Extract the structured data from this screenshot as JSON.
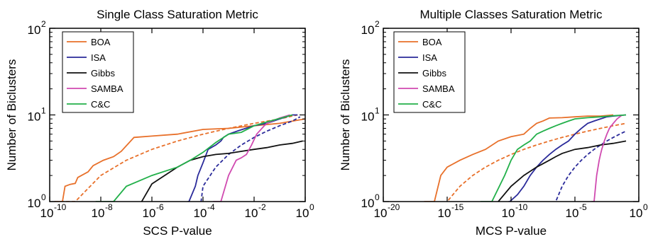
{
  "chart_data": [
    {
      "type": "line",
      "title": "Single Class Saturation Metric",
      "xlabel": "SCS P-value",
      "ylabel": "Number of Biclusters",
      "xscale": "log",
      "yscale": "log",
      "xlim": [
        -10,
        0
      ],
      "ylim": [
        0,
        2
      ],
      "xticks": [
        {
          "exp": -10,
          "label": "10",
          "sup": "-10"
        },
        {
          "exp": -8,
          "label": "10",
          "sup": "-8"
        },
        {
          "exp": -6,
          "label": "10",
          "sup": "-6"
        },
        {
          "exp": -4,
          "label": "10",
          "sup": "-4"
        },
        {
          "exp": -2,
          "label": "10",
          "sup": "-2"
        },
        {
          "exp": 0,
          "label": "10",
          "sup": "0"
        }
      ],
      "yticks": [
        {
          "exp": 0,
          "label": "10",
          "sup": "0"
        },
        {
          "exp": 1,
          "label": "10",
          "sup": "1"
        },
        {
          "exp": 2,
          "label": "10",
          "sup": "2"
        }
      ],
      "legend": {
        "position": "top-left",
        "entries": [
          {
            "name": "BOA",
            "color": "#e8702a"
          },
          {
            "name": "ISA",
            "color": "#2a2a9a"
          },
          {
            "name": "Gibbs",
            "color": "#111111"
          },
          {
            "name": "SAMBA",
            "color": "#d04ab0"
          },
          {
            "name": "C&C",
            "color": "#22b04a"
          }
        ]
      },
      "series": [
        {
          "name": "BOA",
          "color": "#e8702a",
          "dash": false,
          "points": [
            [
              -9.8,
              1
            ],
            [
              -9.5,
              1
            ],
            [
              -9.4,
              1.5
            ],
            [
              -9.2,
              1.58
            ],
            [
              -9,
              1.62
            ],
            [
              -8.9,
              1.9
            ],
            [
              -8.5,
              2.2
            ],
            [
              -8.3,
              2.6
            ],
            [
              -7.9,
              3
            ],
            [
              -7.5,
              3.3
            ],
            [
              -7.2,
              3.8
            ],
            [
              -6.7,
              5.5
            ],
            [
              -6,
              5.7
            ],
            [
              -5,
              6
            ],
            [
              -4,
              6.8
            ],
            [
              -3,
              7
            ],
            [
              -2,
              7.5
            ],
            [
              -1,
              8
            ],
            [
              0,
              9
            ]
          ]
        },
        {
          "name": "BOA",
          "color": "#e8702a",
          "dash": true,
          "points": [
            [
              -9.8,
              0
            ],
            [
              -9,
              1
            ],
            [
              -8,
              2
            ],
            [
              -7,
              3
            ],
            [
              -6,
              4
            ],
            [
              -5,
              5
            ],
            [
              -4,
              6
            ],
            [
              -3,
              7
            ],
            [
              -2,
              8
            ],
            [
              -1,
              9
            ],
            [
              -0.3,
              10
            ]
          ]
        },
        {
          "name": "ISA",
          "color": "#2a2a9a",
          "dash": false,
          "points": [
            [
              -4.6,
              0
            ],
            [
              -4.55,
              1
            ],
            [
              -4.3,
              1.5
            ],
            [
              -4.2,
              2
            ],
            [
              -4,
              2.8
            ],
            [
              -3.8,
              4
            ],
            [
              -3.5,
              4.5
            ],
            [
              -3.3,
              5
            ],
            [
              -3.2,
              5.5
            ],
            [
              -3,
              6
            ],
            [
              -2.6,
              6.6
            ],
            [
              -2,
              7.5
            ],
            [
              -1.5,
              8
            ],
            [
              -1,
              9
            ],
            [
              -0.5,
              10
            ],
            [
              -0.3,
              10
            ]
          ]
        },
        {
          "name": "ISA",
          "color": "#2a2a9a",
          "dash": true,
          "points": [
            [
              -4.3,
              0.3
            ],
            [
              -4,
              1.5
            ],
            [
              -3.5,
              2.5
            ],
            [
              -3,
              3.5
            ],
            [
              -2.5,
              4.5
            ],
            [
              -2,
              5.5
            ],
            [
              -1.5,
              6.5
            ],
            [
              -1,
              7.5
            ],
            [
              -0.5,
              8.5
            ],
            [
              -0.2,
              9.5
            ]
          ]
        },
        {
          "name": "Gibbs",
          "color": "#111111",
          "dash": false,
          "points": [
            [
              -7.4,
              0
            ],
            [
              -6.9,
              0.5
            ],
            [
              -6.4,
              1
            ],
            [
              -6,
              1.6
            ],
            [
              -5.5,
              2
            ],
            [
              -5,
              2.5
            ],
            [
              -4.5,
              3
            ],
            [
              -4,
              3.3
            ],
            [
              -3.5,
              3.5
            ],
            [
              -3,
              3.6
            ],
            [
              -2.5,
              3.8
            ],
            [
              -2,
              4
            ],
            [
              -1.5,
              4.2
            ],
            [
              -1,
              4.5
            ],
            [
              -0.5,
              4.7
            ],
            [
              -0.1,
              5
            ]
          ]
        },
        {
          "name": "SAMBA",
          "color": "#d04ab0",
          "dash": false,
          "points": [
            [
              -3.6,
              0
            ],
            [
              -3.3,
              1
            ],
            [
              -3,
              2
            ],
            [
              -2.7,
              3
            ],
            [
              -2.5,
              3.2
            ],
            [
              -2.3,
              3.5
            ],
            [
              -2.1,
              4.5
            ],
            [
              -1.9,
              6
            ],
            [
              -1.6,
              7.5
            ],
            [
              -1.5,
              8
            ],
            [
              -1.3,
              8.5
            ],
            [
              -1,
              9.2
            ],
            [
              -0.6,
              10
            ]
          ]
        },
        {
          "name": "C&C",
          "color": "#22b04a",
          "dash": false,
          "points": [
            [
              -8.2,
              0
            ],
            [
              -7.5,
              1
            ],
            [
              -7,
              1.5
            ],
            [
              -6,
              2
            ],
            [
              -5,
              2.5
            ],
            [
              -4.5,
              3
            ],
            [
              -4,
              3.7
            ],
            [
              -3.5,
              4.8
            ],
            [
              -3,
              6
            ],
            [
              -2.5,
              6.3
            ],
            [
              -2,
              7.5
            ],
            [
              -1.5,
              8.3
            ],
            [
              -1,
              9.1
            ],
            [
              -0.5,
              10
            ]
          ]
        }
      ]
    },
    {
      "type": "line",
      "title": "Multiple Classes Saturation Metric",
      "xlabel": "MCS P-value",
      "ylabel": "Number of Biclusters",
      "xscale": "log",
      "yscale": "log",
      "xlim": [
        -20,
        0
      ],
      "ylim": [
        0,
        2
      ],
      "xticks": [
        {
          "exp": -20,
          "label": "10",
          "sup": "-20"
        },
        {
          "exp": -15,
          "label": "10",
          "sup": "-15"
        },
        {
          "exp": -10,
          "label": "10",
          "sup": "-10"
        },
        {
          "exp": -5,
          "label": "10",
          "sup": "-5"
        },
        {
          "exp": 0,
          "label": "10",
          "sup": "0"
        }
      ],
      "yticks": [
        {
          "exp": 0,
          "label": "10",
          "sup": "0"
        },
        {
          "exp": 1,
          "label": "10",
          "sup": "1"
        },
        {
          "exp": 2,
          "label": "10",
          "sup": "2"
        }
      ],
      "legend": {
        "position": "top-right",
        "entries": [
          {
            "name": "BOA",
            "color": "#e8702a"
          },
          {
            "name": "ISA",
            "color": "#2a2a9a"
          },
          {
            "name": "Gibbs",
            "color": "#111111"
          },
          {
            "name": "SAMBA",
            "color": "#d04ab0"
          },
          {
            "name": "C&C",
            "color": "#22b04a"
          }
        ]
      },
      "series": [
        {
          "name": "BOA",
          "color": "#e8702a",
          "dash": false,
          "points": [
            [
              -16.8,
              0
            ],
            [
              -16,
              1
            ],
            [
              -15.5,
              2
            ],
            [
              -15,
              2.5
            ],
            [
              -14,
              3
            ],
            [
              -13,
              3.5
            ],
            [
              -12,
              4
            ],
            [
              -11,
              5
            ],
            [
              -10,
              5.6
            ],
            [
              -9,
              6
            ],
            [
              -8.5,
              7
            ],
            [
              -8,
              8
            ],
            [
              -7.5,
              8.5
            ],
            [
              -7,
              9.2
            ],
            [
              -6,
              9.3
            ],
            [
              -5,
              9.5
            ],
            [
              -4,
              9.7
            ],
            [
              -3,
              9.7
            ],
            [
              -2,
              10
            ]
          ]
        },
        {
          "name": "BOA",
          "color": "#e8702a",
          "dash": true,
          "points": [
            [
              -16.5,
              0.3
            ],
            [
              -15,
              1
            ],
            [
              -14,
              1.5
            ],
            [
              -13,
              2
            ],
            [
              -12,
              2.5
            ],
            [
              -11,
              3
            ],
            [
              -10,
              3.5
            ],
            [
              -9,
              4
            ],
            [
              -8,
              4.5
            ],
            [
              -7,
              5
            ],
            [
              -6,
              5.5
            ],
            [
              -5,
              6
            ],
            [
              -4,
              6.5
            ],
            [
              -3,
              7
            ],
            [
              -2,
              7.5
            ],
            [
              -1,
              8
            ]
          ]
        },
        {
          "name": "ISA",
          "color": "#2a2a9a",
          "dash": false,
          "points": [
            [
              -10.2,
              0
            ],
            [
              -10.1,
              1
            ],
            [
              -9.5,
              1.2
            ],
            [
              -9,
              1.5
            ],
            [
              -8.5,
              2
            ],
            [
              -8,
              2.5
            ],
            [
              -7.5,
              3
            ],
            [
              -7,
              3.5
            ],
            [
              -6.5,
              4
            ],
            [
              -6,
              4.5
            ],
            [
              -5.5,
              5
            ],
            [
              -5,
              6
            ],
            [
              -4.5,
              7
            ],
            [
              -4,
              8
            ],
            [
              -3.5,
              8.5
            ],
            [
              -3,
              9
            ],
            [
              -2.5,
              9.5
            ],
            [
              -2,
              9.7
            ],
            [
              -1,
              10
            ]
          ]
        },
        {
          "name": "ISA",
          "color": "#2a2a9a",
          "dash": true,
          "points": [
            [
              -7,
              0.5
            ],
            [
              -6.5,
              1
            ],
            [
              -6,
              1.5
            ],
            [
              -5.5,
              2
            ],
            [
              -5,
              2.5
            ],
            [
              -4.5,
              3
            ],
            [
              -4,
              3.5
            ],
            [
              -3.5,
              4
            ],
            [
              -3,
              4.5
            ],
            [
              -2.5,
              5
            ],
            [
              -2,
              5.5
            ],
            [
              -1.5,
              6
            ],
            [
              -1,
              6.5
            ]
          ]
        },
        {
          "name": "Gibbs",
          "color": "#111111",
          "dash": false,
          "points": [
            [
              -13.2,
              0
            ],
            [
              -12,
              0.5
            ],
            [
              -11,
              1
            ],
            [
              -10,
              1.5
            ],
            [
              -9,
              2
            ],
            [
              -8,
              2.5
            ],
            [
              -7,
              3
            ],
            [
              -6.5,
              3.3
            ],
            [
              -6,
              3.6
            ],
            [
              -5,
              4
            ],
            [
              -4,
              4.2
            ],
            [
              -3,
              4.5
            ],
            [
              -2,
              4.7
            ],
            [
              -1,
              5
            ]
          ]
        },
        {
          "name": "SAMBA",
          "color": "#d04ab0",
          "dash": false,
          "points": [
            [
              -3.7,
              0
            ],
            [
              -3.5,
              1
            ],
            [
              -3.3,
              2
            ],
            [
              -3.1,
              3
            ],
            [
              -3,
              3.5
            ],
            [
              -2.9,
              4
            ],
            [
              -2.7,
              5
            ],
            [
              -2.5,
              6
            ],
            [
              -2.3,
              7
            ],
            [
              -2,
              8
            ],
            [
              -1.7,
              9
            ],
            [
              -1.3,
              10
            ]
          ]
        },
        {
          "name": "C&C",
          "color": "#22b04a",
          "dash": false,
          "points": [
            [
              -12.4,
              0
            ],
            [
              -11.5,
              1
            ],
            [
              -10.5,
              2
            ],
            [
              -10,
              3
            ],
            [
              -9.5,
              4
            ],
            [
              -9,
              4.5
            ],
            [
              -8.5,
              5
            ],
            [
              -8,
              6
            ],
            [
              -7.5,
              6.5
            ],
            [
              -7,
              7
            ],
            [
              -6.5,
              7.5
            ],
            [
              -6,
              8
            ],
            [
              -5.5,
              8.5
            ],
            [
              -5,
              9
            ],
            [
              -4,
              9.3
            ],
            [
              -3,
              9.5
            ],
            [
              -2,
              9.8
            ],
            [
              -1,
              10
            ]
          ]
        }
      ]
    }
  ]
}
